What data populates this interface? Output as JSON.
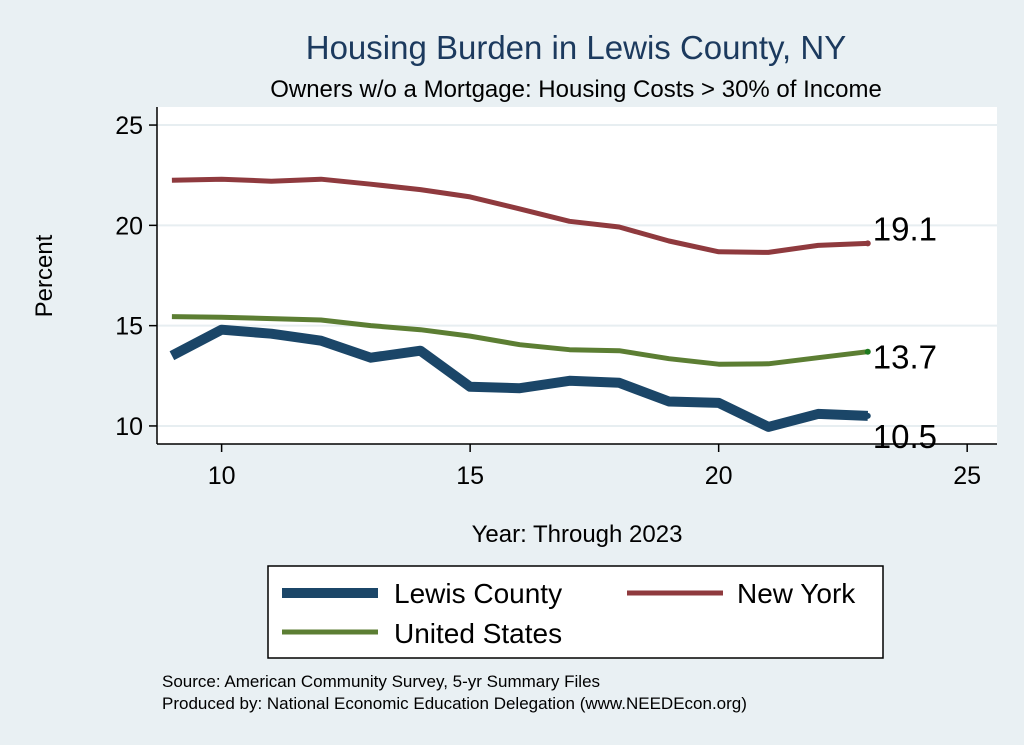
{
  "chart_data": {
    "type": "line",
    "title": "Housing Burden in Lewis County, NY",
    "subtitle": "Owners w/o a Mortgage: Housing Costs > 30% of Income",
    "xlabel": "Year: Through 2023",
    "ylabel": "Percent",
    "xlim": [
      8.7,
      25.6
    ],
    "ylim": [
      9.1,
      25.9
    ],
    "xticks": [
      10,
      15,
      20,
      25
    ],
    "yticks": [
      10,
      15,
      20,
      25
    ],
    "grid": true,
    "x": [
      9,
      10,
      11,
      12,
      13,
      14,
      15,
      16,
      17,
      18,
      19,
      20,
      21,
      22,
      23
    ],
    "series": [
      {
        "name": "Lewis County",
        "color": "#1b4668",
        "values": [
          13.5,
          14.8,
          14.6,
          14.25,
          13.4,
          13.75,
          11.95,
          11.88,
          12.25,
          12.15,
          11.22,
          11.15,
          9.95,
          10.6,
          10.5
        ],
        "end_label": "10.5"
      },
      {
        "name": "New York",
        "color": "#8f3a3e",
        "values": [
          22.25,
          22.3,
          22.2,
          22.3,
          22.05,
          21.78,
          21.42,
          20.82,
          20.2,
          19.92,
          19.22,
          18.68,
          18.65,
          19.0,
          19.1
        ],
        "end_label": "19.1"
      },
      {
        "name": "United States",
        "color": "#5c7e33",
        "values": [
          15.45,
          15.42,
          15.35,
          15.28,
          15.0,
          14.8,
          14.48,
          14.05,
          13.8,
          13.75,
          13.35,
          13.08,
          13.1,
          13.4,
          13.7
        ],
        "end_label": "13.7"
      }
    ],
    "legend": {
      "placement": "bottom",
      "entries": [
        "Lewis County",
        "New York",
        "United States"
      ]
    },
    "source_lines": [
      "Source: American Community Survey, 5-yr Summary Files",
      "Produced by: National Economic Education Delegation (www.NEEDEcon.org)"
    ]
  }
}
